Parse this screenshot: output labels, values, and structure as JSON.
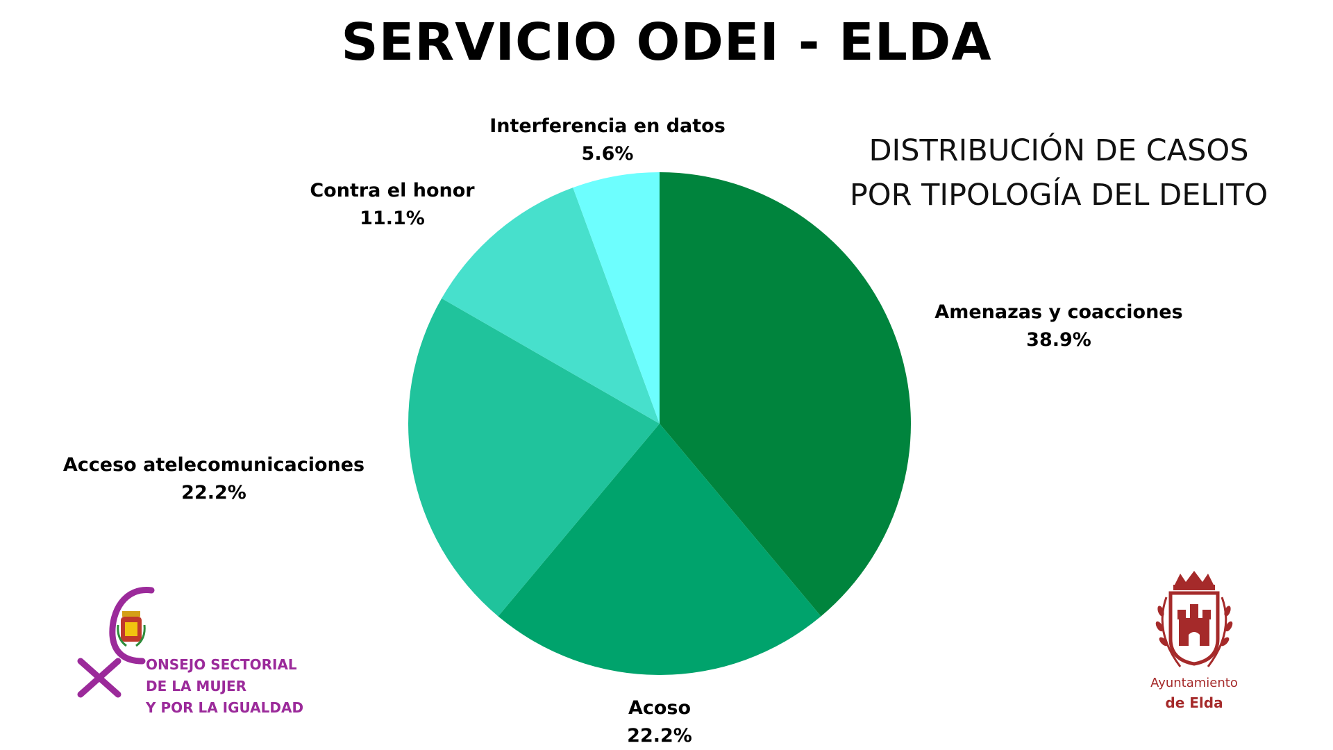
{
  "title": "SERVICIO ODEI - ELDA",
  "subtitle_lines": [
    "DISTRIBUCIÓN DE CASOS",
    "POR TIPOLOGÍA DEL DELITO"
  ],
  "chart_data": {
    "type": "pie",
    "title": "DISTRIBUCIÓN DE CASOS POR TIPOLOGÍA DEL DELITO",
    "slices": [
      {
        "label": "Amenazas y coacciones",
        "value": 38.9,
        "display": "38.9%",
        "color": "#00843d"
      },
      {
        "label": "Acoso",
        "value": 22.2,
        "display": "22.2%",
        "color": "#00a36c"
      },
      {
        "label": "Acceso atelecomunicaciones",
        "value": 22.2,
        "display": "22.2%",
        "color": "#20c39c"
      },
      {
        "label": "Contra el honor",
        "value": 11.1,
        "display": "11.1%",
        "color": "#47e0cc"
      },
      {
        "label": "Interferencia en datos",
        "value": 5.6,
        "display": "5.6%",
        "color": "#6dfefe"
      }
    ],
    "start": "12 o'clock",
    "direction": "clockwise"
  },
  "logos": {
    "consejo": {
      "lines": [
        "ONSEJO SECTORIAL",
        "DE LA MUJER",
        "Y POR LA IGUALDAD"
      ],
      "color": "#9b2a9a"
    },
    "ayuntamiento": {
      "line1": "Ayuntamiento",
      "line2": "de Elda",
      "color": "#a52a2a"
    }
  }
}
